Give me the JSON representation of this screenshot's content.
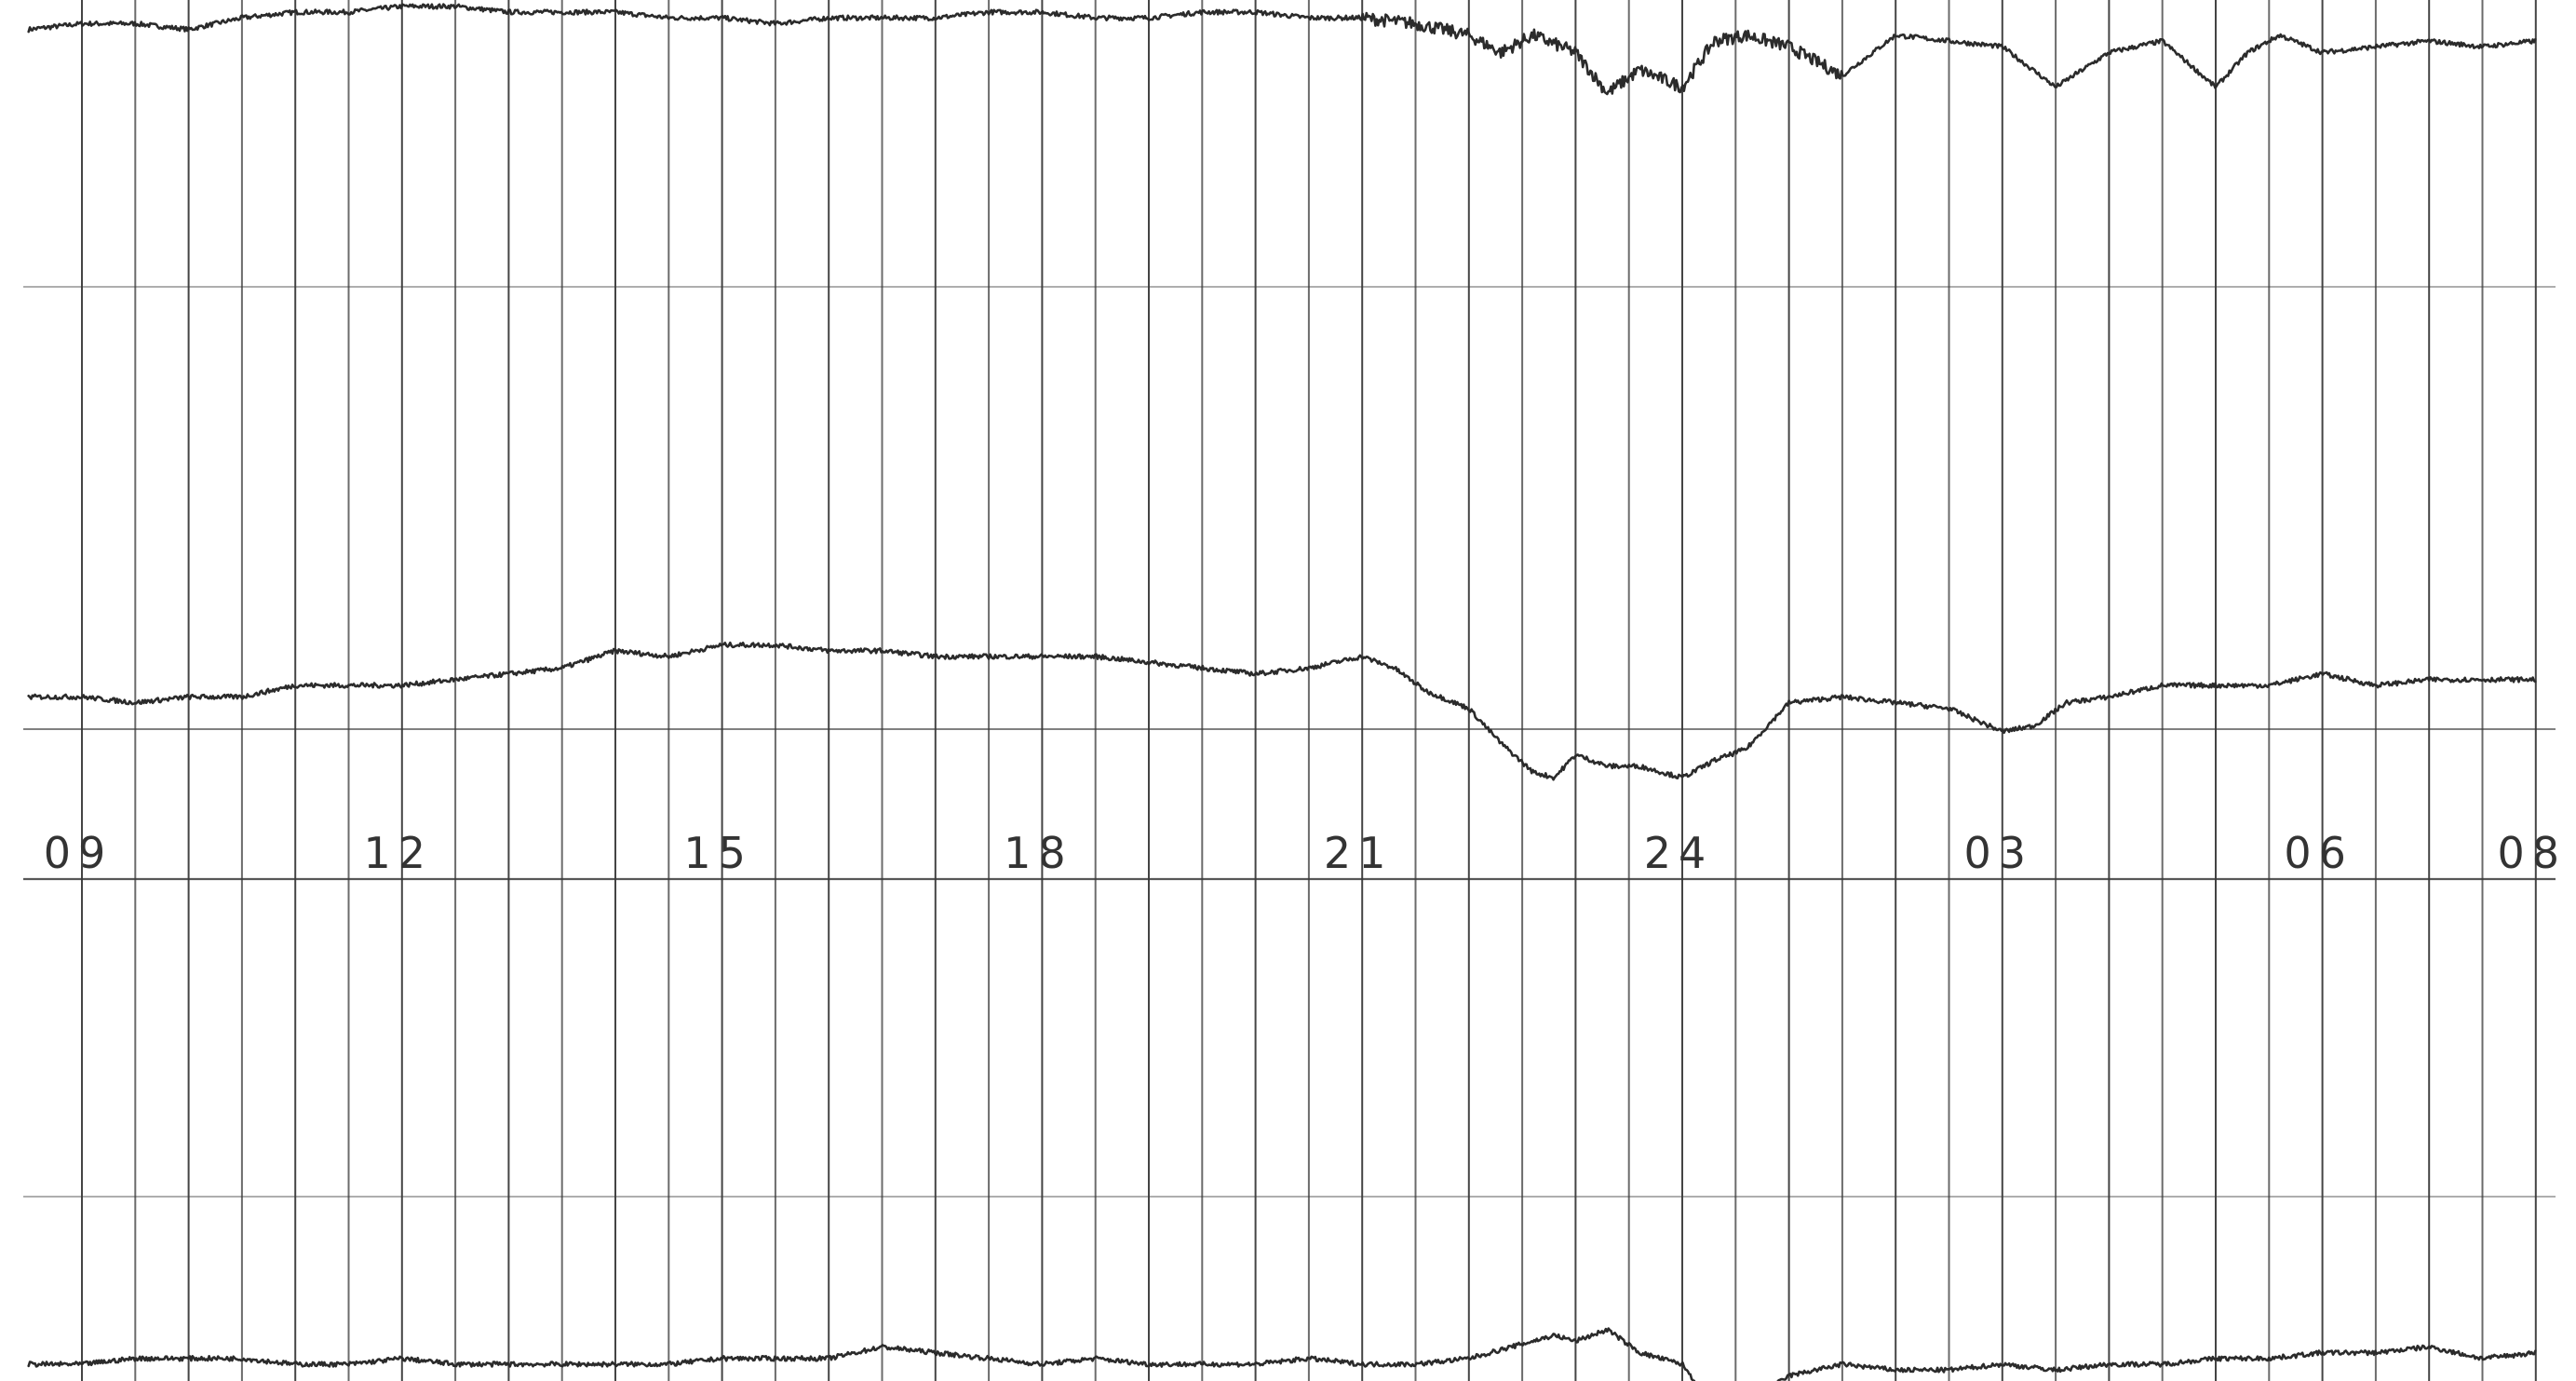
{
  "chart_data": {
    "type": "line",
    "title": "",
    "xlabel": "",
    "ylabel": "",
    "x_tick_labels": [
      "09",
      "12",
      "15",
      "18",
      "21",
      "24",
      "03",
      "06",
      "08"
    ],
    "x_tick_hours": [
      0,
      3,
      6,
      9,
      12,
      15,
      18,
      21,
      23
    ],
    "x_range_hours": [
      -0.5,
      23.0
    ],
    "grid": true,
    "legend": "none",
    "colors": {
      "grid": "#3a3a3a",
      "trace": "#2b2b2b",
      "paper": "#ffffff",
      "label": "#333333"
    },
    "series": [
      {
        "x": [
          -0.5,
          0,
          0.5,
          1,
          1.5,
          2,
          2.5,
          3,
          3.5,
          4,
          4.5,
          5,
          5.5,
          6,
          6.5,
          7,
          7.5,
          8,
          8.5,
          9,
          9.5,
          10,
          10.5,
          11,
          11.5,
          12,
          12.5,
          13,
          13.3,
          13.6,
          14,
          14.3,
          14.6,
          15,
          15.3,
          15.6,
          16,
          16.5,
          17,
          17.5,
          18,
          18.5,
          19,
          19.5,
          20,
          20.3,
          20.6,
          21,
          21.5,
          22,
          22.5,
          23
        ],
        "y": [
          0.07,
          0.08,
          0.08,
          0.07,
          0.09,
          0.1,
          0.1,
          0.11,
          0.11,
          0.1,
          0.1,
          0.1,
          0.09,
          0.09,
          0.08,
          0.09,
          0.09,
          0.09,
          0.1,
          0.1,
          0.09,
          0.09,
          0.1,
          0.1,
          0.09,
          0.09,
          0.08,
          0.06,
          0.03,
          0.06,
          0.03,
          -0.04,
          0.0,
          -0.03,
          0.05,
          0.06,
          0.04,
          -0.01,
          0.06,
          0.05,
          0.04,
          -0.03,
          0.03,
          0.05,
          -0.03,
          0.03,
          0.06,
          0.03,
          0.04,
          0.05,
          0.04,
          0.05
        ]
      },
      {
        "x": [
          -0.5,
          0,
          0.5,
          1,
          1.5,
          2,
          2.5,
          3,
          3.5,
          4,
          4.5,
          5,
          5.5,
          6,
          6.5,
          7,
          7.5,
          8,
          8.5,
          9,
          9.5,
          10,
          10.5,
          11,
          11.5,
          12,
          12.3,
          12.6,
          13,
          13.3,
          13.6,
          13.8,
          14,
          14.3,
          14.6,
          15,
          15.3,
          15.6,
          16,
          16.5,
          17,
          17.5,
          18,
          18.3,
          18.6,
          19,
          19.5,
          20,
          20.5,
          21,
          21.5,
          22,
          22.5,
          23
        ],
        "y": [
          -0.07,
          -0.07,
          -0.08,
          -0.07,
          -0.07,
          -0.05,
          -0.05,
          -0.05,
          -0.04,
          -0.03,
          -0.02,
          0.01,
          0.0,
          0.02,
          0.02,
          0.01,
          0.01,
          0.0,
          0.0,
          0.0,
          0.0,
          -0.01,
          -0.02,
          -0.03,
          -0.02,
          0.0,
          -0.02,
          -0.06,
          -0.09,
          -0.15,
          -0.2,
          -0.21,
          -0.17,
          -0.19,
          -0.19,
          -0.21,
          -0.18,
          -0.16,
          -0.08,
          -0.07,
          -0.08,
          -0.09,
          -0.13,
          -0.12,
          -0.08,
          -0.07,
          -0.05,
          -0.05,
          -0.05,
          -0.03,
          -0.05,
          -0.04,
          -0.04,
          -0.04
        ]
      },
      {
        "x": [
          -0.5,
          0,
          0.5,
          1,
          1.5,
          2,
          2.5,
          3,
          3.5,
          4,
          4.5,
          5,
          5.5,
          6,
          6.5,
          7,
          7.5,
          8,
          8.5,
          9,
          9.5,
          10,
          10.5,
          11,
          11.5,
          12,
          12.5,
          13,
          13.4,
          13.8,
          14,
          14.3,
          14.6,
          15,
          15.2,
          15.5,
          16,
          16.5,
          17,
          17.5,
          18,
          18.5,
          19,
          19.5,
          20,
          20.5,
          21,
          21.5,
          22,
          22.5,
          23
        ],
        "y": [
          0.0,
          0.0,
          0.01,
          0.01,
          0.01,
          0.0,
          0.0,
          0.01,
          0.0,
          0.0,
          0.0,
          0.0,
          0.0,
          0.01,
          0.01,
          0.01,
          0.03,
          0.02,
          0.01,
          0.0,
          0.01,
          0.0,
          0.0,
          0.0,
          0.01,
          0.0,
          0.0,
          0.01,
          0.03,
          0.05,
          0.04,
          0.06,
          0.02,
          0.0,
          -0.05,
          -0.08,
          -0.02,
          0.0,
          -0.01,
          -0.01,
          0.0,
          -0.01,
          0.0,
          0.0,
          0.01,
          0.01,
          0.02,
          0.02,
          0.03,
          0.01,
          0.02
        ]
      }
    ]
  }
}
